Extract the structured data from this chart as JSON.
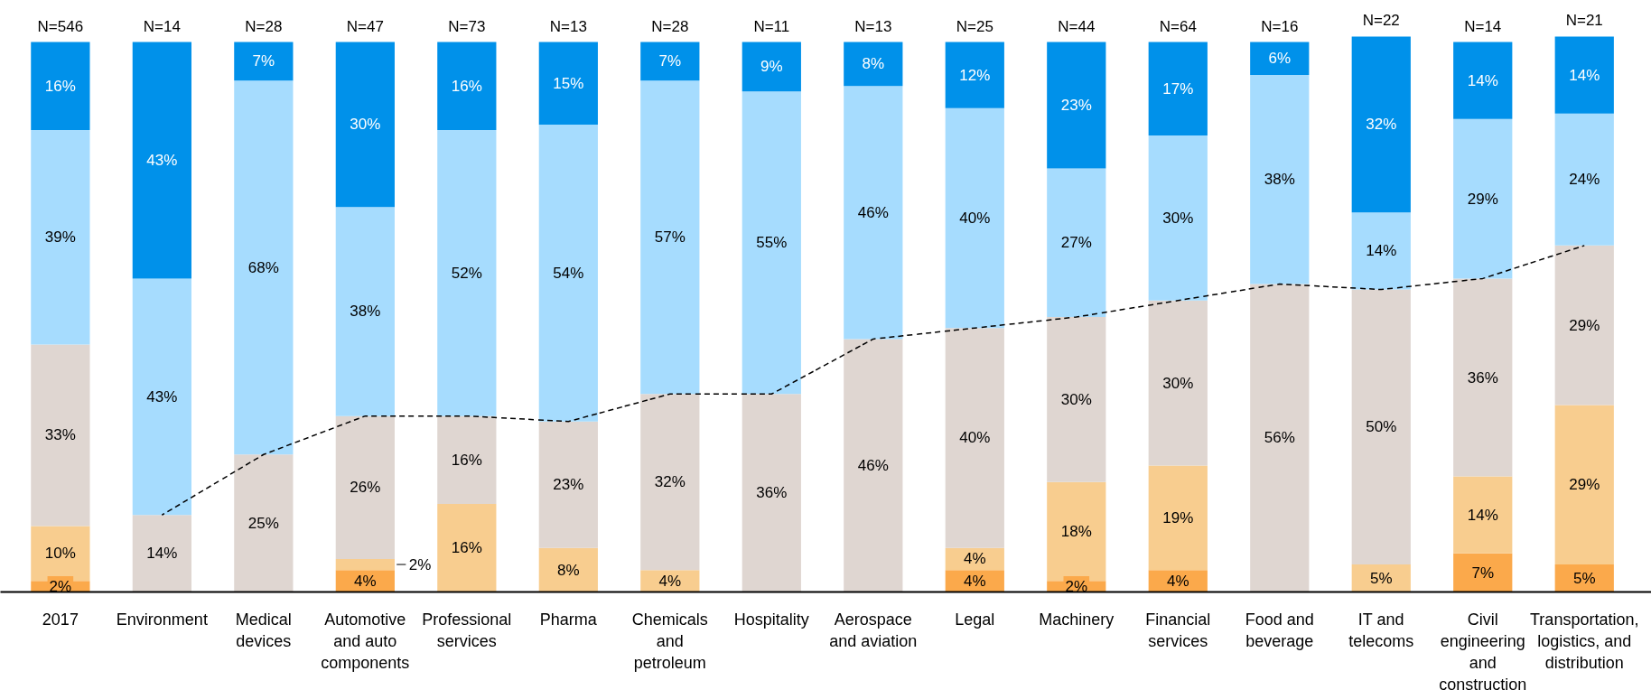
{
  "chart_data": {
    "type": "bar",
    "stacked": true,
    "tick_labels": "x",
    "categories": [
      "2017",
      "Environment",
      "Medical devices",
      "Automotive and auto components",
      "Professional services",
      "Pharma",
      "Chemicals and petroleum",
      "Hospitality",
      "Aerospace and aviation",
      "Legal",
      "Machinery",
      "Financial services",
      "Food and beverage",
      "IT and telecoms",
      "Civil engineering and construction",
      "Transportation, logistics, and distribution"
    ],
    "series": [
      {
        "color": "#fba94b",
        "values": [
          2,
          null,
          null,
          4,
          null,
          null,
          null,
          null,
          null,
          4,
          2,
          4,
          null,
          null,
          7,
          5
        ],
        "value_labels": [
          "2%",
          null,
          null,
          "4%",
          null,
          null,
          null,
          null,
          null,
          "4%",
          "2%",
          "4%",
          null,
          null,
          "7%",
          "5%"
        ]
      },
      {
        "color": "#f8cd8f",
        "values": [
          10,
          null,
          null,
          2,
          16,
          8,
          4,
          null,
          null,
          4,
          18,
          19,
          null,
          5,
          14,
          29
        ],
        "value_labels": [
          "10%",
          null,
          null,
          "2%",
          "16%",
          "8%",
          "4%",
          null,
          null,
          "4%",
          "18%",
          "19%",
          null,
          "5%",
          "14%",
          "29%"
        ]
      },
      {
        "color": "#dfd6d1",
        "values": [
          33,
          14,
          25,
          26,
          16,
          23,
          32,
          36,
          46,
          40,
          30,
          30,
          56,
          50,
          36,
          29
        ],
        "value_labels": [
          "33%",
          "14%",
          "25%",
          "26%",
          "16%",
          "23%",
          "32%",
          "36%",
          "46%",
          "40%",
          "30%",
          "30%",
          "56%",
          "50%",
          "36%",
          "29%"
        ]
      },
      {
        "color": "#a6dcfe",
        "values": [
          39,
          43,
          68,
          38,
          52,
          54,
          57,
          55,
          46,
          40,
          27,
          30,
          38,
          14,
          29,
          24
        ],
        "value_labels": [
          "39%",
          "43%",
          "68%",
          "38%",
          "52%",
          "54%",
          "57%",
          "55%",
          "46%",
          "40%",
          "27%",
          "30%",
          "38%",
          "14%",
          "29%",
          "24%"
        ]
      },
      {
        "color": "#0091ea",
        "values": [
          16,
          43,
          7,
          30,
          16,
          15,
          7,
          9,
          8,
          12,
          23,
          17,
          6,
          32,
          14,
          14
        ],
        "value_labels": [
          "16%",
          "43%",
          "7%",
          "30%",
          "16%",
          "15%",
          "7%",
          "9%",
          "8%",
          "12%",
          "23%",
          "17%",
          "6%",
          "32%",
          "14%",
          "14%"
        ]
      },
      {
        "type": "line",
        "color": "#000000",
        "line_style": "dashed",
        "values": [
          null,
          14,
          25,
          32,
          32,
          31,
          36,
          36,
          46,
          48,
          50,
          53,
          56,
          55,
          57,
          63
        ]
      }
    ],
    "annotations": [
      {
        "text": "N=546",
        "x": "2017",
        "y": 100
      },
      {
        "text": "N=14",
        "x": "Environment",
        "y": 100
      },
      {
        "text": "N=28",
        "x": "Medical devices",
        "y": 100
      },
      {
        "text": "N=47",
        "x": "Automotive and auto components",
        "y": 100
      },
      {
        "text": "N=73",
        "x": "Professional services",
        "y": 100
      },
      {
        "text": "N=13",
        "x": "Pharma",
        "y": 100
      },
      {
        "text": "N=28",
        "x": "Chemicals and petroleum",
        "y": 100
      },
      {
        "text": "N=11",
        "x": "Hospitality",
        "y": 100
      },
      {
        "text": "N=13",
        "x": "Aerospace and aviation",
        "y": 100
      },
      {
        "text": "N=25",
        "x": "Legal",
        "y": 100
      },
      {
        "text": "N=44",
        "x": "Machinery",
        "y": 100
      },
      {
        "text": "N=64",
        "x": "Financial services",
        "y": 100
      },
      {
        "text": "N=16",
        "x": "Food and beverage",
        "y": 100
      },
      {
        "text": "N=22",
        "x": "IT and telecoms",
        "y": 101
      },
      {
        "text": "N=14",
        "x": "Civil engineering and construction",
        "y": 100
      },
      {
        "text": "N=21",
        "x": "Transportation, logistics, and distribution",
        "y": 101
      }
    ]
  }
}
